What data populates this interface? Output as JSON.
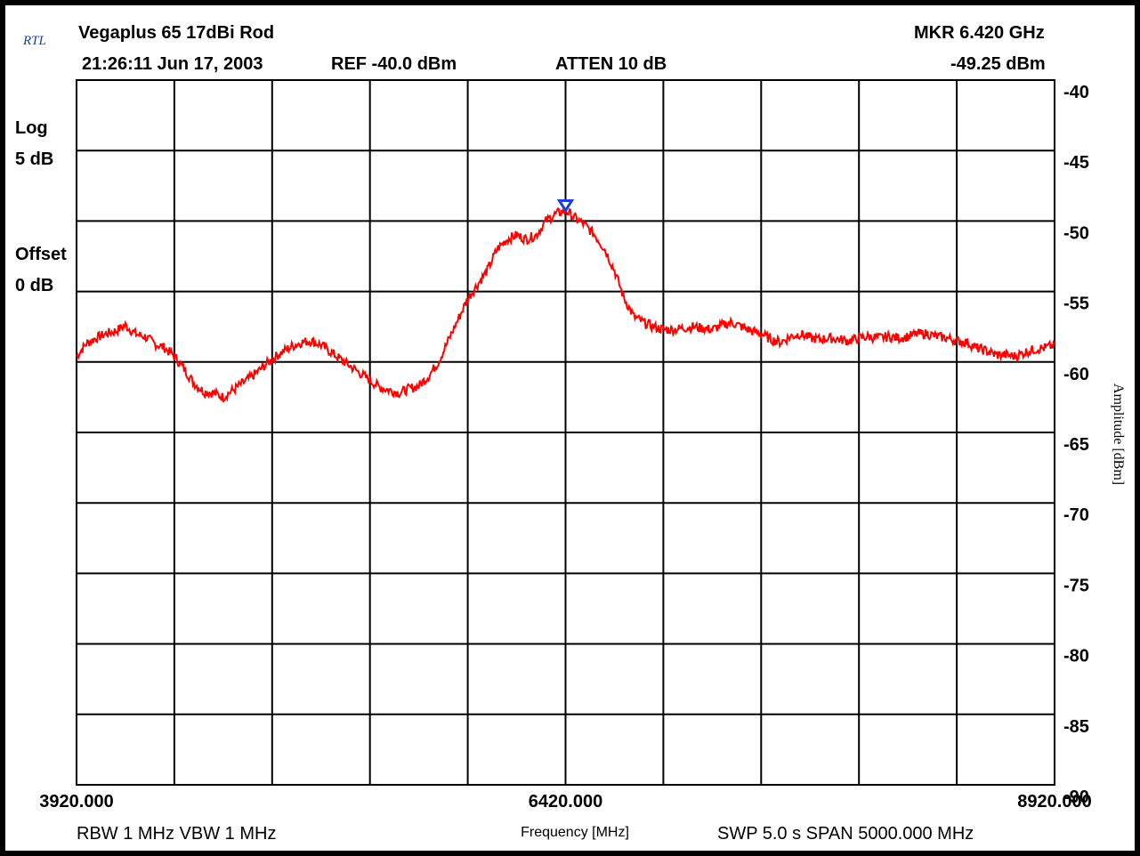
{
  "header": {
    "logo": "RTL",
    "title": "Vegaplus 65 17dBi Rod",
    "timestamp": "21:26:11 Jun 17, 2003",
    "ref": "REF -40.0 dBm",
    "atten": "ATTEN 10  dB",
    "marker_freq": "MKR  6.420 GHz",
    "marker_amp": "-49.25 dBm"
  },
  "left_labels": {
    "log": "Log",
    "log_scale": "5 dB",
    "offset": "Offset",
    "offset_val": "0 dB"
  },
  "footer": {
    "rbw_vbw": "RBW 1 MHz  VBW 1 MHz",
    "swp_span": "SWP 5.0 s  SPAN 5000.000 MHz"
  },
  "chart_data": {
    "type": "line",
    "xlabel": "Frequency [MHz]",
    "ylabel": "Amplitude [dBm]",
    "xlim": [
      3920,
      8920
    ],
    "ylim": [
      -90,
      -40
    ],
    "x_tick_labels": [
      "3920.000",
      "6420.000",
      "8920.000"
    ],
    "x_tick_values": [
      3920,
      6420,
      8920
    ],
    "y_ticks": [
      -40,
      -45,
      -50,
      -55,
      -60,
      -65,
      -70,
      -75,
      -80,
      -85,
      -90
    ],
    "grid": true,
    "series": [
      {
        "color": "#ff0000",
        "x": [
          3920,
          3970,
          4020,
          4070,
          4120,
          4170,
          4220,
          4270,
          4320,
          4370,
          4420,
          4470,
          4520,
          4570,
          4620,
          4670,
          4720,
          4770,
          4820,
          4870,
          4920,
          4970,
          5020,
          5070,
          5120,
          5170,
          5220,
          5270,
          5320,
          5370,
          5420,
          5470,
          5520,
          5570,
          5620,
          5670,
          5720,
          5770,
          5820,
          5870,
          5920,
          5970,
          6020,
          6070,
          6120,
          6170,
          6220,
          6270,
          6320,
          6370,
          6420,
          6470,
          6520,
          6570,
          6620,
          6670,
          6720,
          6770,
          6820,
          6870,
          6920,
          6970,
          7020,
          7070,
          7120,
          7170,
          7220,
          7270,
          7320,
          7370,
          7420,
          7470,
          7520,
          7570,
          7620,
          7670,
          7720,
          7770,
          7820,
          7870,
          7920,
          7970,
          8020,
          8070,
          8120,
          8170,
          8220,
          8270,
          8320,
          8370,
          8420,
          8470,
          8520,
          8570,
          8620,
          8670,
          8720,
          8770,
          8820,
          8870,
          8920
        ],
        "values": [
          -59.6,
          -58.7,
          -58.3,
          -58.0,
          -57.8,
          -57.4,
          -58.0,
          -58.2,
          -58.7,
          -59.0,
          -59.6,
          -60.5,
          -61.5,
          -62.1,
          -62.2,
          -62.5,
          -62.0,
          -61.5,
          -61.0,
          -60.4,
          -59.8,
          -59.3,
          -58.9,
          -58.6,
          -58.5,
          -58.8,
          -59.3,
          -59.8,
          -60.3,
          -60.8,
          -61.3,
          -61.8,
          -62.0,
          -62.2,
          -61.9,
          -61.7,
          -61.0,
          -60.0,
          -58.5,
          -57.0,
          -55.5,
          -54.5,
          -53.5,
          -52.0,
          -51.3,
          -51.0,
          -51.3,
          -51.0,
          -50.0,
          -49.5,
          -49.25,
          -49.8,
          -50.3,
          -51.0,
          -52.0,
          -53.5,
          -55.5,
          -56.8,
          -57.2,
          -57.5,
          -57.7,
          -57.7,
          -57.6,
          -57.5,
          -57.6,
          -57.7,
          -57.4,
          -57.2,
          -57.5,
          -57.8,
          -58.0,
          -58.4,
          -58.6,
          -58.2,
          -58.0,
          -58.3,
          -58.4,
          -58.3,
          -58.4,
          -58.5,
          -58.3,
          -58.2,
          -58.3,
          -58.2,
          -58.3,
          -58.2,
          -58.0,
          -58.0,
          -58.2,
          -58.3,
          -58.5,
          -58.6,
          -59.0,
          -59.2,
          -59.5,
          -59.5,
          -59.6,
          -59.3,
          -59.1,
          -59.0,
          -58.8
        ]
      }
    ],
    "marker": {
      "x": 6420,
      "y": -49.25,
      "color": "#1f3fd6"
    }
  }
}
